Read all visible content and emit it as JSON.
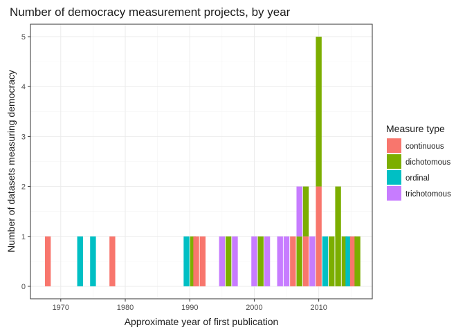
{
  "chart_data": {
    "type": "bar",
    "stacked": true,
    "title": "Number of democracy measurement projects, by year",
    "xlabel": "Approximate year of first publication",
    "ylabel": "Number of datasets measuring democracy",
    "xlim": [
      1965.3,
      2018.3
    ],
    "ylim": [
      -0.25,
      5.25
    ],
    "x_ticks": [
      1970,
      1980,
      1990,
      2000,
      2010
    ],
    "y_ticks": [
      0,
      1,
      2,
      3,
      4,
      5
    ],
    "legend": {
      "title": "Measure type",
      "position": "right",
      "entries": [
        {
          "name": "continuous",
          "color": "#F8766D"
        },
        {
          "name": "dichotomous",
          "color": "#7CAE00"
        },
        {
          "name": "ordinal",
          "color": "#00BFC4"
        },
        {
          "name": "trichotomous",
          "color": "#C77CFF"
        }
      ]
    },
    "series_order": [
      "continuous",
      "dichotomous",
      "ordinal",
      "trichotomous"
    ],
    "data": [
      {
        "year": 1968,
        "counts": {
          "continuous": 1
        }
      },
      {
        "year": 1973,
        "counts": {
          "ordinal": 1
        }
      },
      {
        "year": 1975,
        "counts": {
          "ordinal": 1
        }
      },
      {
        "year": 1978,
        "counts": {
          "continuous": 1
        }
      },
      {
        "year": 1989.5,
        "counts": {
          "ordinal": 1
        }
      },
      {
        "year": 1990.5,
        "counts": {
          "dichotomous": 1
        }
      },
      {
        "year": 1991,
        "counts": {
          "continuous": 1
        }
      },
      {
        "year": 1992,
        "counts": {
          "continuous": 1
        }
      },
      {
        "year": 1995,
        "counts": {
          "trichotomous": 1
        }
      },
      {
        "year": 1996,
        "counts": {
          "dichotomous": 1
        }
      },
      {
        "year": 1997,
        "counts": {
          "trichotomous": 1
        }
      },
      {
        "year": 2000,
        "counts": {
          "trichotomous": 1
        }
      },
      {
        "year": 2001,
        "counts": {
          "dichotomous": 1
        }
      },
      {
        "year": 2002,
        "counts": {
          "trichotomous": 1
        }
      },
      {
        "year": 2004,
        "counts": {
          "trichotomous": 1
        }
      },
      {
        "year": 2005,
        "counts": {
          "trichotomous": 1
        }
      },
      {
        "year": 2006,
        "counts": {
          "continuous": 1
        }
      },
      {
        "year": 2007,
        "counts": {
          "dichotomous": 1,
          "trichotomous": 1
        }
      },
      {
        "year": 2008,
        "counts": {
          "continuous": 1,
          "dichotomous": 1
        }
      },
      {
        "year": 2009,
        "counts": {
          "trichotomous": 1
        }
      },
      {
        "year": 2010,
        "counts": {
          "continuous": 2,
          "dichotomous": 3
        }
      },
      {
        "year": 2011,
        "counts": {
          "ordinal": 1
        }
      },
      {
        "year": 2012,
        "counts": {
          "dichotomous": 1
        }
      },
      {
        "year": 2013,
        "counts": {
          "dichotomous": 2
        }
      },
      {
        "year": 2014,
        "counts": {
          "dichotomous": 1
        }
      },
      {
        "year": 2014.6,
        "counts": {
          "ordinal": 1
        }
      },
      {
        "year": 2015.3,
        "counts": {
          "continuous": 1
        }
      },
      {
        "year": 2016,
        "counts": {
          "dichotomous": 1
        }
      }
    ]
  }
}
